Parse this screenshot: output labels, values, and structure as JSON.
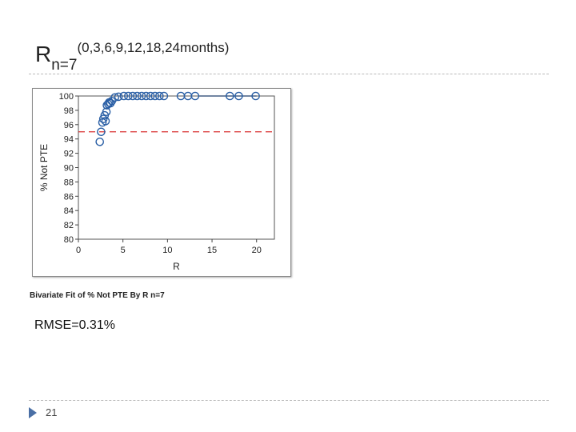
{
  "slide": {
    "title_main": "R",
    "title_sub": "n=7",
    "title_sup": "(0,3,6,9,12,18,24months)",
    "caption": "Bivariate Fit of % Not PTE By R n=7",
    "rmse": "RMSE=0.31%",
    "page_number": "21"
  },
  "colors": {
    "marker": "#2a5fa5",
    "reference_line": "#d93030",
    "frame": "#8a8a8a",
    "slide_arrow": "#4a6fa5"
  },
  "chart_data": {
    "type": "scatter",
    "title": "",
    "xlabel": "R",
    "ylabel": "% Not PTE",
    "xlim": [
      0,
      22
    ],
    "ylim": [
      80,
      100
    ],
    "x_ticks": [
      0,
      5,
      10,
      15,
      20
    ],
    "y_ticks": [
      80,
      82,
      84,
      86,
      88,
      90,
      92,
      94,
      96,
      98,
      100
    ],
    "grid": false,
    "legend": "none",
    "reference_line": {
      "y": 95,
      "style": "dashed"
    },
    "fit_line": {
      "x": [
        13.5,
        20
      ],
      "y": [
        100,
        100
      ]
    },
    "series": [
      {
        "marker": "open-circle",
        "x": [
          2.4,
          2.55,
          2.7,
          2.8,
          2.95,
          3.05,
          3.15,
          3.2,
          3.35,
          3.45,
          3.6,
          3.75,
          4.1,
          4.5,
          5.1,
          5.6,
          6.1,
          6.6,
          7.1,
          7.6,
          8.1,
          8.6,
          9.1,
          9.6,
          11.5,
          12.3,
          13.1,
          17.0,
          18.0,
          19.9
        ],
        "y": [
          93.6,
          95.0,
          96.3,
          96.8,
          97.3,
          96.5,
          97.8,
          98.7,
          98.9,
          99.1,
          99.0,
          99.3,
          99.8,
          99.9,
          100,
          100,
          100,
          100,
          100,
          100,
          100,
          100,
          100,
          100,
          100,
          100,
          100,
          100,
          100,
          100
        ]
      }
    ]
  }
}
